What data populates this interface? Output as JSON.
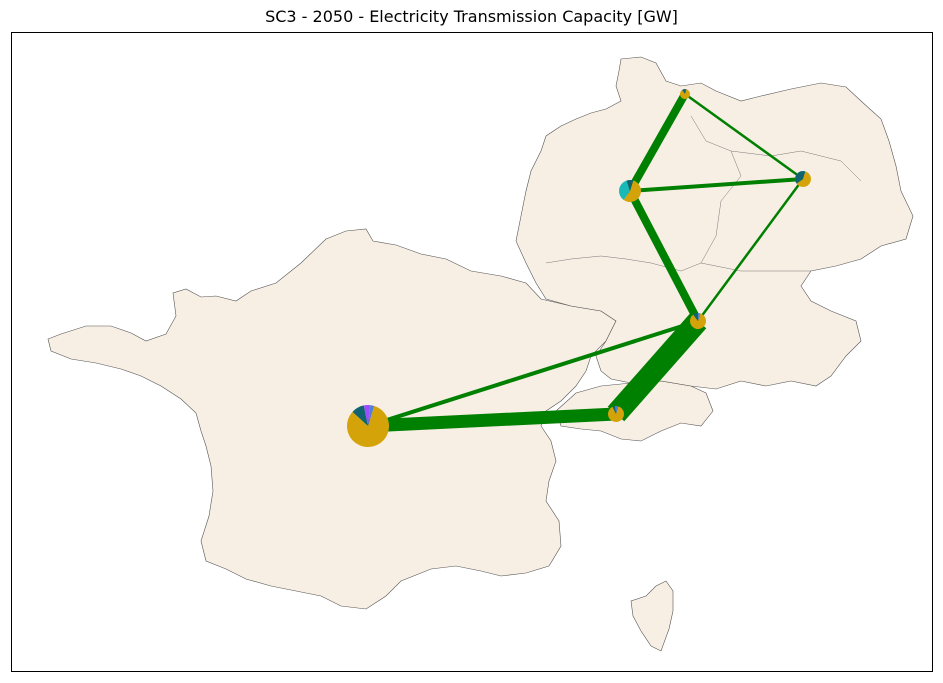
{
  "title": "SC3 - 2050 - Electricity Transmission Capacity [GW]",
  "colors": {
    "land": "#f8efe4",
    "border": "#555555",
    "line": "#008000",
    "gold": "#d4a30a",
    "teal": "#0f6470",
    "cyan": "#1bb8b8",
    "purple": "#9b4dff",
    "blue": "#4f7fd8"
  },
  "nodes": [
    {
      "id": "fr",
      "size": "large",
      "shares": {
        "gold": 0.82,
        "teal": 0.1,
        "purple": 0.05,
        "blue": 0.03
      }
    },
    {
      "id": "ch",
      "size": "small",
      "shares": {
        "gold": 0.88,
        "teal": 0.05,
        "blue": 0.07
      }
    },
    {
      "id": "de-south",
      "size": "small",
      "shares": {
        "gold": 0.85,
        "teal": 0.1,
        "blue": 0.05
      }
    },
    {
      "id": "de-west",
      "size": "medium",
      "shares": {
        "gold": 0.55,
        "cyan": 0.35,
        "teal": 0.1
      }
    },
    {
      "id": "de-east",
      "size": "small",
      "shares": {
        "gold": 0.6,
        "teal": 0.4
      }
    },
    {
      "id": "de-north",
      "size": "tiny",
      "shares": {
        "gold": 0.85,
        "teal": 0.15
      }
    }
  ],
  "links": [
    {
      "from": "fr",
      "to": "ch",
      "weight": "very-high"
    },
    {
      "from": "fr",
      "to": "de-south",
      "weight": "medium"
    },
    {
      "from": "ch",
      "to": "de-south",
      "weight": "highest"
    },
    {
      "from": "de-south",
      "to": "de-west",
      "weight": "high"
    },
    {
      "from": "de-south",
      "to": "de-east",
      "weight": "low"
    },
    {
      "from": "de-west",
      "to": "de-east",
      "weight": "medium"
    },
    {
      "from": "de-west",
      "to": "de-north",
      "weight": "high"
    },
    {
      "from": "de-north",
      "to": "de-east",
      "weight": "low"
    }
  ]
}
